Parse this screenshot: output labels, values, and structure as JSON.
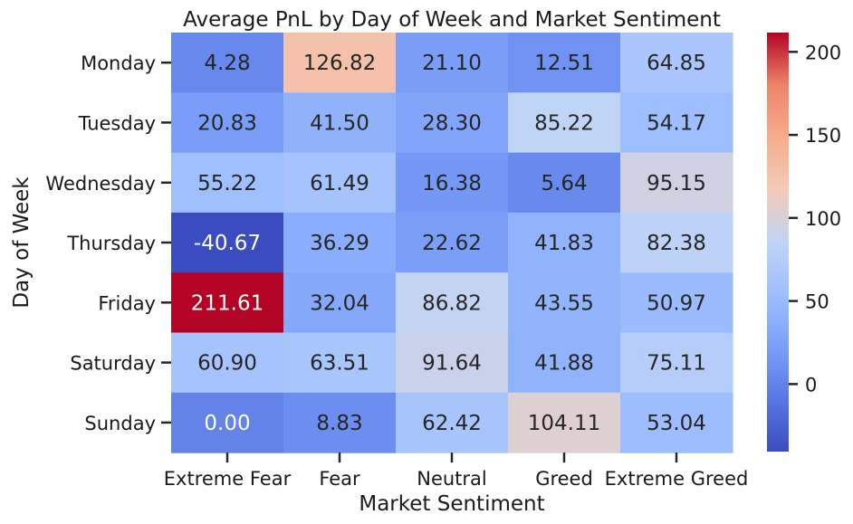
{
  "chart_data": {
    "type": "heatmap",
    "title": "Average PnL by Day of Week and Market Sentiment",
    "xlabel": "Market Sentiment",
    "ylabel": "Day of Week",
    "x_categories": [
      "Extreme Fear",
      "Fear",
      "Neutral",
      "Greed",
      "Extreme Greed"
    ],
    "y_categories": [
      "Monday",
      "Tuesday",
      "Wednesday",
      "Thursday",
      "Friday",
      "Saturday",
      "Sunday"
    ],
    "values": [
      [
        4.28,
        126.82,
        21.1,
        12.51,
        64.85
      ],
      [
        20.83,
        41.5,
        28.3,
        85.22,
        54.17
      ],
      [
        55.22,
        61.49,
        16.38,
        5.64,
        95.15
      ],
      [
        -40.67,
        36.29,
        22.62,
        41.83,
        82.38
      ],
      [
        211.61,
        32.04,
        86.82,
        43.55,
        50.97
      ],
      [
        60.9,
        63.51,
        91.64,
        41.88,
        75.11
      ],
      [
        0.0,
        8.83,
        62.42,
        104.11,
        53.04
      ]
    ],
    "value_format": "2 decimals",
    "colormap": "coolwarm",
    "colorbar": {
      "range": [
        -40.67,
        211.61
      ],
      "ticks": [
        0,
        50,
        100,
        150,
        200
      ]
    }
  }
}
